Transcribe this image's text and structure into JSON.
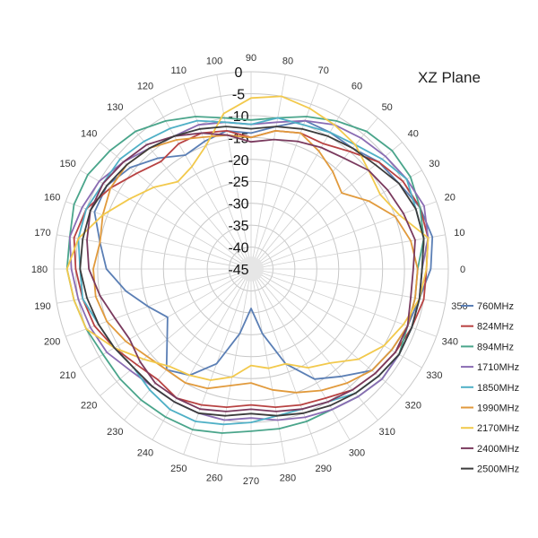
{
  "chart_data": {
    "type": "line",
    "polar": true,
    "title": "XZ  Plane",
    "angle_ticks": [
      "90",
      "80",
      "70",
      "60",
      "50",
      "40",
      "30",
      "20",
      "10",
      "0",
      "350",
      "340",
      "330",
      "320",
      "310",
      "300",
      "290",
      "280",
      "270",
      "260",
      "250",
      "240",
      "230",
      "220",
      "210",
      "200",
      "190",
      "180",
      "170",
      "160",
      "150",
      "140",
      "130",
      "120",
      "110",
      "100"
    ],
    "radial_ticks": [
      "0",
      "-5",
      "-10",
      "-15",
      "-20",
      "-25",
      "-30",
      "-35",
      "-40",
      "-45"
    ],
    "rlim": [
      -45,
      0
    ],
    "grid": true,
    "legend_position": "right",
    "angles": [
      0,
      10,
      20,
      30,
      40,
      50,
      60,
      70,
      80,
      90,
      100,
      110,
      120,
      130,
      140,
      150,
      160,
      170,
      180,
      190,
      200,
      210,
      220,
      230,
      240,
      250,
      260,
      270,
      280,
      290,
      300,
      310,
      320,
      330,
      340,
      350
    ],
    "series": [
      {
        "name": "760MHz",
        "color": "#5b7fb5",
        "values": [
          -4,
          -3,
          -4,
          -6,
          -7,
          -9,
          -9,
          -9,
          -12,
          -14,
          -13,
          -14,
          -15,
          -12,
          -9,
          -7,
          -7,
          -10,
          -12,
          -16,
          -20,
          -23,
          -20,
          -15,
          -17,
          -22,
          -30,
          -36,
          -30,
          -22,
          -16,
          -13,
          -9,
          -8,
          -7,
          -6
        ]
      },
      {
        "name": "824MHz",
        "color": "#b84242",
        "values": [
          -5,
          -4,
          -4,
          -5,
          -7,
          -10,
          -12,
          -12,
          -13,
          -15,
          -13,
          -12,
          -12,
          -13,
          -11,
          -8,
          -5,
          -4,
          -5,
          -6,
          -7,
          -9,
          -11,
          -12,
          -11,
          -12,
          -13,
          -14,
          -13,
          -12,
          -11,
          -9,
          -8,
          -7,
          -6,
          -5
        ]
      },
      {
        "name": "894MHz",
        "color": "#4aa58b",
        "values": [
          -7,
          -5,
          -4,
          -3,
          -3,
          -4,
          -6,
          -8,
          -10,
          -11,
          -10,
          -8,
          -6,
          -4,
          -3,
          -2,
          -2,
          -3,
          -3,
          -4,
          -5,
          -6,
          -6,
          -6,
          -6,
          -6,
          -7,
          -8,
          -8,
          -8,
          -8,
          -7,
          -6,
          -6,
          -7,
          -7
        ]
      },
      {
        "name": "1710MHz",
        "color": "#8a6cb3",
        "values": [
          -6,
          -4,
          -3,
          -4,
          -5,
          -6,
          -7,
          -9,
          -11,
          -12,
          -11,
          -10,
          -10,
          -9,
          -7,
          -5,
          -4,
          -3,
          -4,
          -5,
          -6,
          -7,
          -9,
          -10,
          -10,
          -10,
          -10,
          -11,
          -10,
          -9,
          -8,
          -7,
          -6,
          -6,
          -6,
          -6
        ]
      },
      {
        "name": "1850MHz",
        "color": "#4fb0c6",
        "values": [
          -6,
          -5,
          -5,
          -4,
          -6,
          -8,
          -9,
          -10,
          -10,
          -12,
          -11,
          -9,
          -8,
          -7,
          -6,
          -6,
          -5,
          -5,
          -6,
          -6,
          -8,
          -9,
          -10,
          -9,
          -8,
          -8,
          -9,
          -10,
          -11,
          -11,
          -10,
          -8,
          -7,
          -6,
          -6,
          -6
        ]
      },
      {
        "name": "1990MHz",
        "color": "#e19a3c",
        "values": [
          -7,
          -8,
          -10,
          -14,
          -18,
          -16,
          -14,
          -12,
          -13,
          -15,
          -14,
          -13,
          -11,
          -9,
          -8,
          -8,
          -9,
          -10,
          -9,
          -9,
          -10,
          -12,
          -14,
          -15,
          -15,
          -16,
          -18,
          -19,
          -17,
          -15,
          -13,
          -11,
          -9,
          -8,
          -7,
          -7
        ]
      },
      {
        "name": "2170MHz",
        "color": "#f2c94c",
        "values": [
          -5,
          -4,
          -9,
          -11,
          -10,
          -8,
          -7,
          -6,
          -5,
          -6,
          -9,
          -15,
          -18,
          -19,
          -16,
          -13,
          -9,
          -5,
          -3,
          -4,
          -5,
          -9,
          -13,
          -16,
          -17,
          -18,
          -20,
          -23,
          -22,
          -22,
          -19,
          -17,
          -13,
          -10,
          -8,
          -6
        ]
      },
      {
        "name": "2400MHz",
        "color": "#7a3a5e",
        "values": [
          -8,
          -7,
          -8,
          -9,
          -10,
          -12,
          -13,
          -14,
          -15,
          -16,
          -14,
          -12,
          -10,
          -8,
          -7,
          -6,
          -6,
          -7,
          -8,
          -10,
          -12,
          -13,
          -12,
          -11,
          -11,
          -11,
          -12,
          -13,
          -12,
          -11,
          -10,
          -9,
          -8,
          -7,
          -7,
          -8
        ]
      },
      {
        "name": "2500MHz",
        "color": "#3c3c3c",
        "values": [
          -6,
          -5,
          -5,
          -6,
          -8,
          -9,
          -10,
          -11,
          -12,
          -13,
          -12,
          -11,
          -10,
          -9,
          -8,
          -7,
          -6,
          -6,
          -6,
          -7,
          -8,
          -9,
          -10,
          -10,
          -10,
          -10,
          -11,
          -12,
          -11,
          -10,
          -9,
          -8,
          -7,
          -6,
          -6,
          -6
        ]
      }
    ]
  }
}
